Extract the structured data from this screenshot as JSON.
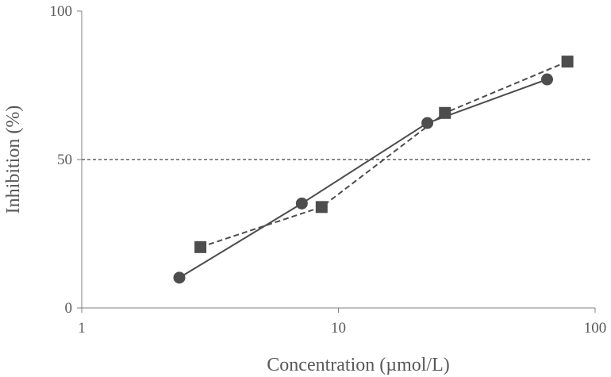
{
  "chart_data": {
    "type": "scatter",
    "xlabel": "Concentration (µmol/L)",
    "ylabel": "Inhibition (%)",
    "xscale": "log",
    "xlim": [
      1,
      100
    ],
    "ylim": [
      0,
      100
    ],
    "xticks": [
      1,
      10,
      100
    ],
    "yticks": [
      0,
      50,
      100
    ],
    "xtick_labels": [
      "1",
      "10",
      "100"
    ],
    "ytick_labels": [
      "0",
      "50",
      "100"
    ],
    "grid": false,
    "reference_lines": [
      {
        "axis": "y",
        "value": 50,
        "style": "dashed"
      }
    ],
    "series": [
      {
        "marker": "circle",
        "line_style": "solid",
        "color": "#4d4d4d",
        "x": [
          2.4,
          7.2,
          22.2,
          65.0
        ],
        "y": [
          10.2,
          35.2,
          62.3,
          77.0
        ]
      },
      {
        "marker": "square",
        "line_style": "dashed",
        "color": "#4d4d4d",
        "x": [
          2.9,
          8.6,
          26.0,
          78.0
        ],
        "y": [
          20.5,
          34.0,
          65.7,
          83.0
        ]
      }
    ]
  }
}
